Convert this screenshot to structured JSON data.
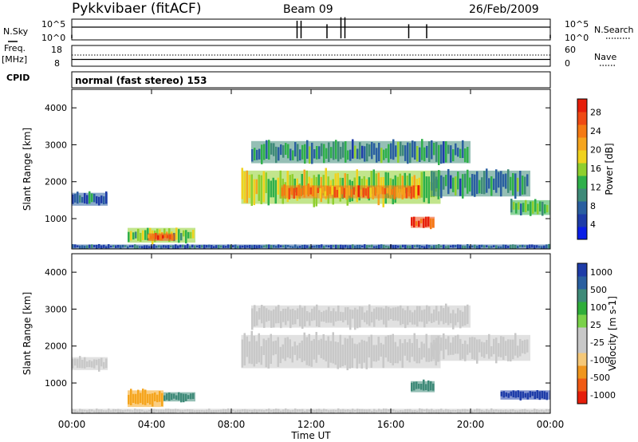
{
  "header": {
    "title": "Pykkvibaer (fitACF)",
    "beam": "Beam 09",
    "date": "26/Feb/2009"
  },
  "side_labels": {
    "nsky": "N.Sky",
    "freq_line1": "Freq.",
    "freq_line2": "[MHz]",
    "cpid": "CPID",
    "nsearch": "N.Search",
    "nave": "Nave"
  },
  "cpid_value": "normal (fast stereo) 153",
  "colors": {
    "power_scale": [
      "#0a1ee6",
      "#1e3ca8",
      "#2a5fa0",
      "#3e8a78",
      "#2fb04a",
      "#8fcf2e",
      "#f0d21e",
      "#f5a51e",
      "#f57a14",
      "#ef4a14",
      "#e61e0a"
    ],
    "velocity_scale": [
      "#e61e0a",
      "#f05a14",
      "#f0961e",
      "#f5c878",
      "#c8c8c8",
      "#c8c8c8",
      "#7ad24a",
      "#2fae3a",
      "#3e8a78",
      "#2a5fa0",
      "#1e3ca8"
    ],
    "ground_scatter": "#c8c8c8"
  },
  "chart_data": [
    {
      "type": "line",
      "title": "N.Sky / N.Search",
      "ylabel_left": "N.Sky",
      "ylabel_right": "N.Search",
      "yticks_left": [
        "10^5",
        "10^0"
      ],
      "yticks_right": [
        "10^5",
        "10^0"
      ],
      "x": [
        0,
        11.3,
        11.5,
        12.8,
        13.5,
        13.7,
        16.9,
        17.8,
        24
      ],
      "values": [
        1,
        5,
        5,
        4,
        6,
        6,
        4,
        4,
        1
      ]
    },
    {
      "type": "line",
      "ylabel_left": "Freq. [MHz]",
      "ylabel_right": "Nave",
      "yticks_left": [
        "18",
        "8"
      ],
      "yticks_right": [
        "60",
        "0"
      ],
      "freq_mhz": 10.5,
      "nave": 30
    },
    {
      "type": "heatmap",
      "parameter": "Power",
      "xlabel": "",
      "ylabel": "Slant Range [km]",
      "colorbar_label": "Power [dB]",
      "colorbar_ticks": [
        4,
        8,
        12,
        16,
        20,
        24,
        28
      ],
      "xlim": [
        0,
        24
      ],
      "ylim": [
        180,
        4500
      ],
      "yticks": [
        1000,
        2000,
        3000,
        4000
      ],
      "echo_regions": [
        {
          "t0": 0.0,
          "t1": 1.8,
          "r0": 1350,
          "r1": 1700,
          "power": 6
        },
        {
          "t0": 2.8,
          "t1": 6.2,
          "r0": 350,
          "r1": 750,
          "power": 15
        },
        {
          "t0": 3.8,
          "t1": 5.2,
          "r0": 400,
          "r1": 600,
          "power": 26
        },
        {
          "t0": 8.5,
          "t1": 18.5,
          "r0": 1400,
          "r1": 2300,
          "power": 16
        },
        {
          "t0": 10.5,
          "t1": 17.5,
          "r0": 1550,
          "r1": 1900,
          "power": 24
        },
        {
          "t0": 9.0,
          "t1": 20.0,
          "r0": 2500,
          "r1": 3100,
          "power": 9
        },
        {
          "t0": 17.0,
          "t1": 18.2,
          "r0": 750,
          "r1": 1050,
          "power": 28
        },
        {
          "t0": 18.0,
          "t1": 23.0,
          "r0": 1600,
          "r1": 2300,
          "power": 9
        },
        {
          "t0": 22.0,
          "t1": 24.0,
          "r0": 1100,
          "r1": 1500,
          "power": 12
        },
        {
          "t0": 0.0,
          "t1": 24.0,
          "r0": 180,
          "r1": 300,
          "power": 5
        }
      ]
    },
    {
      "type": "heatmap",
      "parameter": "Velocity",
      "xlabel": "Time UT",
      "ylabel": "Slant Range [km]",
      "colorbar_label": "Velocity [m s-1]",
      "colorbar_ticks": [
        1000,
        500,
        100,
        25,
        -25,
        -100,
        -500,
        -1000
      ],
      "xlim": [
        0,
        24
      ],
      "ylim": [
        180,
        4500
      ],
      "xticks": [
        "00:00",
        "04:00",
        "08:00",
        "12:00",
        "16:00",
        "20:00",
        "00:00"
      ],
      "yticks": [
        1000,
        2000,
        3000,
        4000
      ],
      "echo_regions": [
        {
          "t0": 0.0,
          "t1": 1.8,
          "r0": 1350,
          "r1": 1700,
          "velocity": 0
        },
        {
          "t0": 2.8,
          "t1": 4.6,
          "r0": 350,
          "r1": 800,
          "velocity": -150
        },
        {
          "t0": 4.6,
          "t1": 6.2,
          "r0": 500,
          "r1": 750,
          "velocity": 150
        },
        {
          "t0": 8.5,
          "t1": 18.5,
          "r0": 1400,
          "r1": 2300,
          "velocity": 0
        },
        {
          "t0": 9.0,
          "t1": 20.0,
          "r0": 2500,
          "r1": 3100,
          "velocity": 0
        },
        {
          "t0": 17.0,
          "t1": 18.2,
          "r0": 750,
          "r1": 1050,
          "velocity": 250
        },
        {
          "t0": 18.0,
          "t1": 23.0,
          "r0": 1600,
          "r1": 2300,
          "velocity": 0
        },
        {
          "t0": 21.5,
          "t1": 24.0,
          "r0": 550,
          "r1": 800,
          "velocity": 700
        },
        {
          "t0": 0.0,
          "t1": 24.0,
          "r0": 180,
          "r1": 300,
          "velocity": -30
        }
      ]
    }
  ]
}
